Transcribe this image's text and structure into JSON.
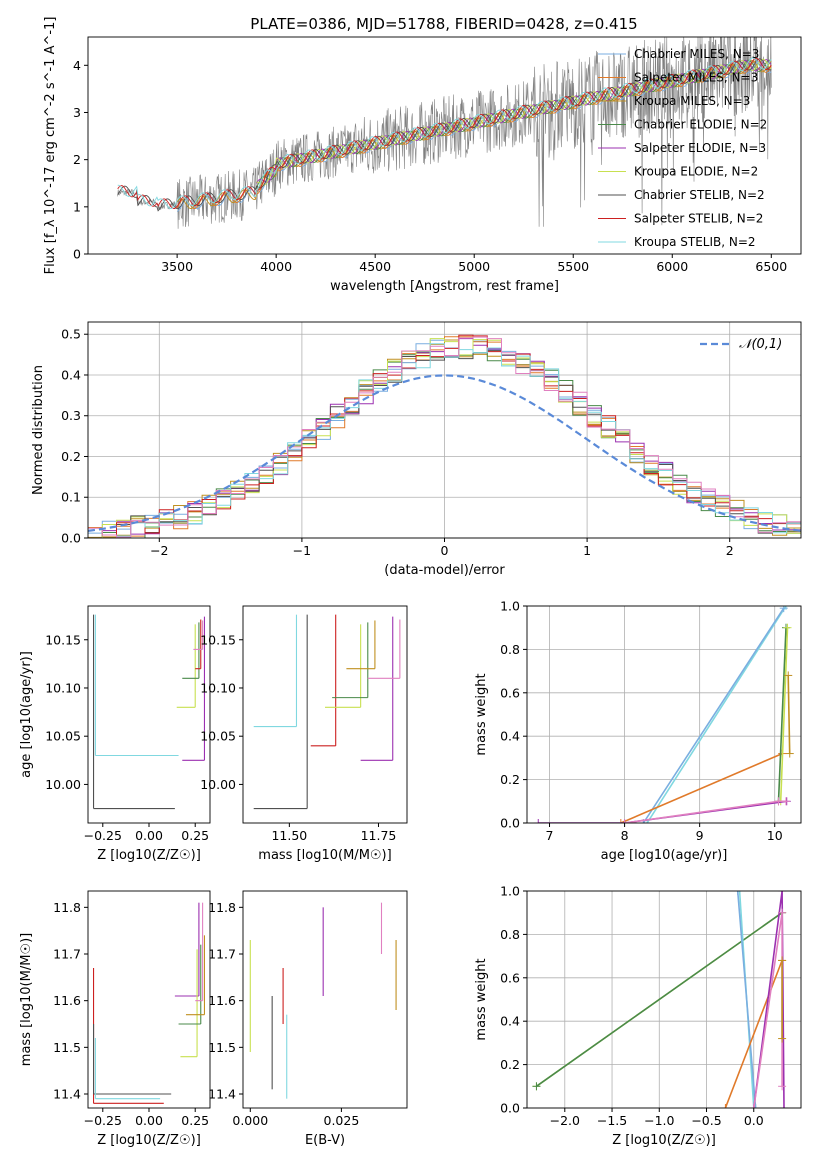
{
  "title": "PLATE=0386, MJD=51788, FIBERID=0428, z=0.415",
  "colors": {
    "chabrier_miles": "#7aaee0",
    "salpeter_miles": "#e07a2a",
    "kroupa_miles": "#c09020",
    "chabrier_elodie": "#4a8a4a",
    "salpeter_elodie": "#9b30b0",
    "kroupa_elodie": "#c8e050",
    "chabrier_stelib": "#505050",
    "salpeter_stelib": "#cc2020",
    "kroupa_stelib": "#80d8e0",
    "extra_pink": "#e080c0",
    "gauss": "#5a8ad8",
    "data": "#808080"
  },
  "chart_data": [
    {
      "type": "line",
      "xlabel": "wavelength [Angstrom, rest frame]",
      "ylabel": "Flux [f_λ 10^-17 erg cm^-2 s^-1 A^-1]",
      "xlim": [
        3050,
        6650
      ],
      "ylim": [
        0,
        4.6
      ],
      "xticks": [
        3500,
        4000,
        4500,
        5000,
        5500,
        6000,
        6500
      ],
      "yticks": [
        0,
        1,
        2,
        3,
        4
      ],
      "legend": [
        "Chabrier MILES, N_SSP=3",
        "Salpeter MILES, N_SSP=3",
        "Kroupa MILES, N_SSP=3",
        "Chabrier ELODIE, N_SSP=2",
        "Salpeter ELODIE, N_SSP=3",
        "Kroupa ELODIE, N_SSP=2",
        "Chabrier STELIB, N_SSP=2",
        "Salpeter STELIB, N_SSP=2",
        "Kroupa STELIB, N_SSP=2"
      ],
      "legend_position": "lower-right",
      "data_range": [
        3200,
        6500
      ],
      "model_start": {
        "MILES": 3500,
        "ELODIE": 3900,
        "STELIB": 3200
      }
    },
    {
      "type": "histogram",
      "xlabel": "(data-model)/error",
      "ylabel": "Normed distribution",
      "xlim": [
        -2.5,
        2.5
      ],
      "ylim": [
        0,
        0.53
      ],
      "xticks": [
        -2,
        -1,
        0,
        1,
        2
      ],
      "yticks": [
        0.0,
        0.1,
        0.2,
        0.3,
        0.4,
        0.5
      ],
      "legend": [
        "𝒩(0,1)"
      ],
      "legend_position": "upper-right",
      "grid": true
    },
    {
      "type": "scatter",
      "xlabel": "Z [log10(Z/Z☉)]",
      "ylabel": "age  [log10(age/yr)]",
      "xlim": [
        -0.33,
        0.33
      ],
      "ylim": [
        9.96,
        10.185
      ],
      "xticks": [
        -0.25,
        0.0,
        0.25
      ],
      "yticks": [
        10.0,
        10.05,
        10.1,
        10.15
      ]
    },
    {
      "type": "scatter",
      "xlabel": "mass [log10(M/M☉)]",
      "xlim": [
        11.37,
        11.83
      ],
      "ylim": [
        9.96,
        10.185
      ],
      "xticks": [
        11.5,
        11.75
      ],
      "yticks": [
        10.0,
        10.05,
        10.1,
        10.15
      ]
    },
    {
      "type": "line",
      "xlabel": "age  [log10(age/yr)]",
      "ylabel": "mass weight",
      "xlim": [
        6.7,
        10.35
      ],
      "ylim": [
        0,
        1
      ],
      "xticks": [
        7,
        8,
        9,
        10
      ],
      "yticks": [
        0.0,
        0.2,
        0.4,
        0.6,
        0.8,
        1.0
      ],
      "grid": true
    },
    {
      "type": "scatter",
      "xlabel": "Z [log10(Z/Z☉)]",
      "ylabel": "mass [log10(M/M☉)]",
      "xlim": [
        -0.33,
        0.33
      ],
      "ylim": [
        11.37,
        11.835
      ],
      "xticks": [
        -0.25,
        0.0,
        0.25
      ],
      "yticks": [
        11.4,
        11.5,
        11.6,
        11.7,
        11.8
      ]
    },
    {
      "type": "scatter",
      "xlabel": "E(B-V)",
      "xlim": [
        -0.002,
        0.043
      ],
      "ylim": [
        11.37,
        11.835
      ],
      "xticks": [
        0.0,
        0.025
      ],
      "yticks": [
        11.4,
        11.5,
        11.6,
        11.7,
        11.8
      ]
    },
    {
      "type": "line",
      "xlabel": "Z [log10(Z/Z☉)]",
      "ylabel": "mass weight",
      "xlim": [
        -2.4,
        0.5
      ],
      "ylim": [
        0,
        1
      ],
      "xticks": [
        -2.0,
        -1.5,
        -1.0,
        -0.5,
        0.0
      ],
      "yticks": [
        0.0,
        0.2,
        0.4,
        0.6,
        0.8,
        1.0
      ],
      "grid": true
    }
  ]
}
